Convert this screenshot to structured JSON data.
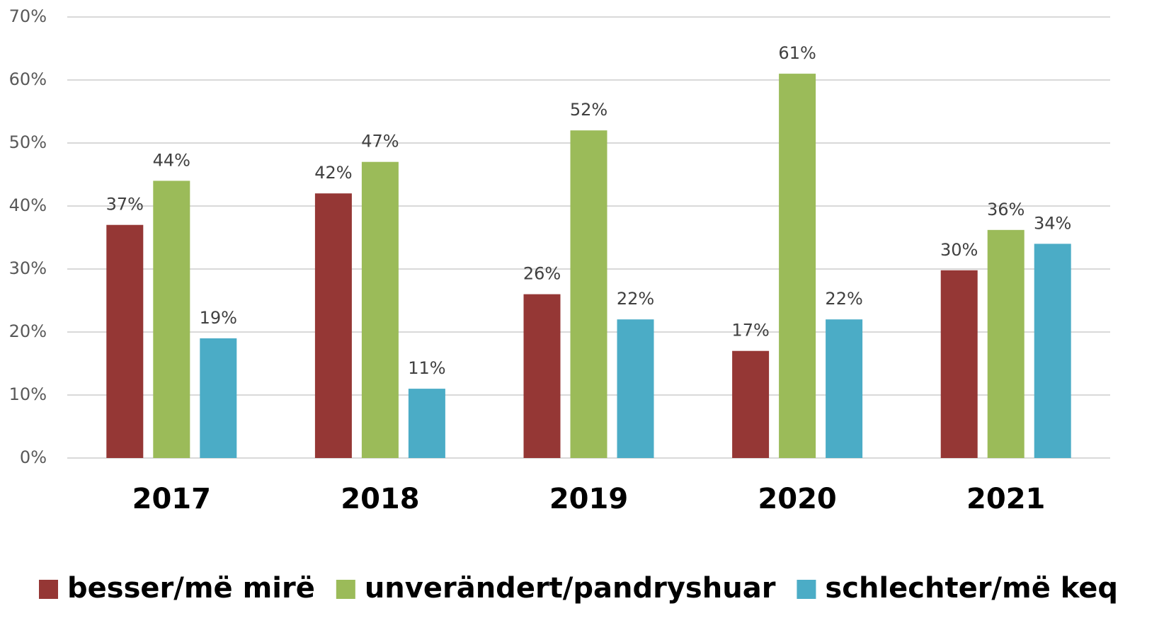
{
  "chart_data": {
    "type": "bar",
    "categories": [
      "2017",
      "2018",
      "2019",
      "2020",
      "2021"
    ],
    "series": [
      {
        "name": "besser/më mirë",
        "color": "#953735",
        "values": [
          37,
          42,
          26,
          17,
          29.8
        ],
        "value_labels": [
          "37%",
          "42%",
          "26%",
          "17%",
          "30%"
        ]
      },
      {
        "name": "unverändert/pandryshuar",
        "color": "#9bbb59",
        "values": [
          44,
          47,
          52,
          61,
          36.2
        ],
        "value_labels": [
          "44%",
          "47%",
          "52%",
          "61%",
          "36%"
        ]
      },
      {
        "name": "schlechter/më keq",
        "color": "#4bacc6",
        "values": [
          19,
          11,
          22,
          22,
          34
        ],
        "value_labels": [
          "19%",
          "11%",
          "22%",
          "22%",
          "34%"
        ]
      }
    ],
    "ylim": [
      0,
      70
    ],
    "yticks": [
      {
        "value": 0,
        "label": "0%"
      },
      {
        "value": 10,
        "label": "10%"
      },
      {
        "value": 20,
        "label": "20%"
      },
      {
        "value": 30,
        "label": "30%"
      },
      {
        "value": 40,
        "label": "40%"
      },
      {
        "value": 50,
        "label": "50%"
      },
      {
        "value": 60,
        "label": "60%"
      },
      {
        "value": 70,
        "label": "70%"
      }
    ],
    "grid": true,
    "legend": "bottom"
  }
}
